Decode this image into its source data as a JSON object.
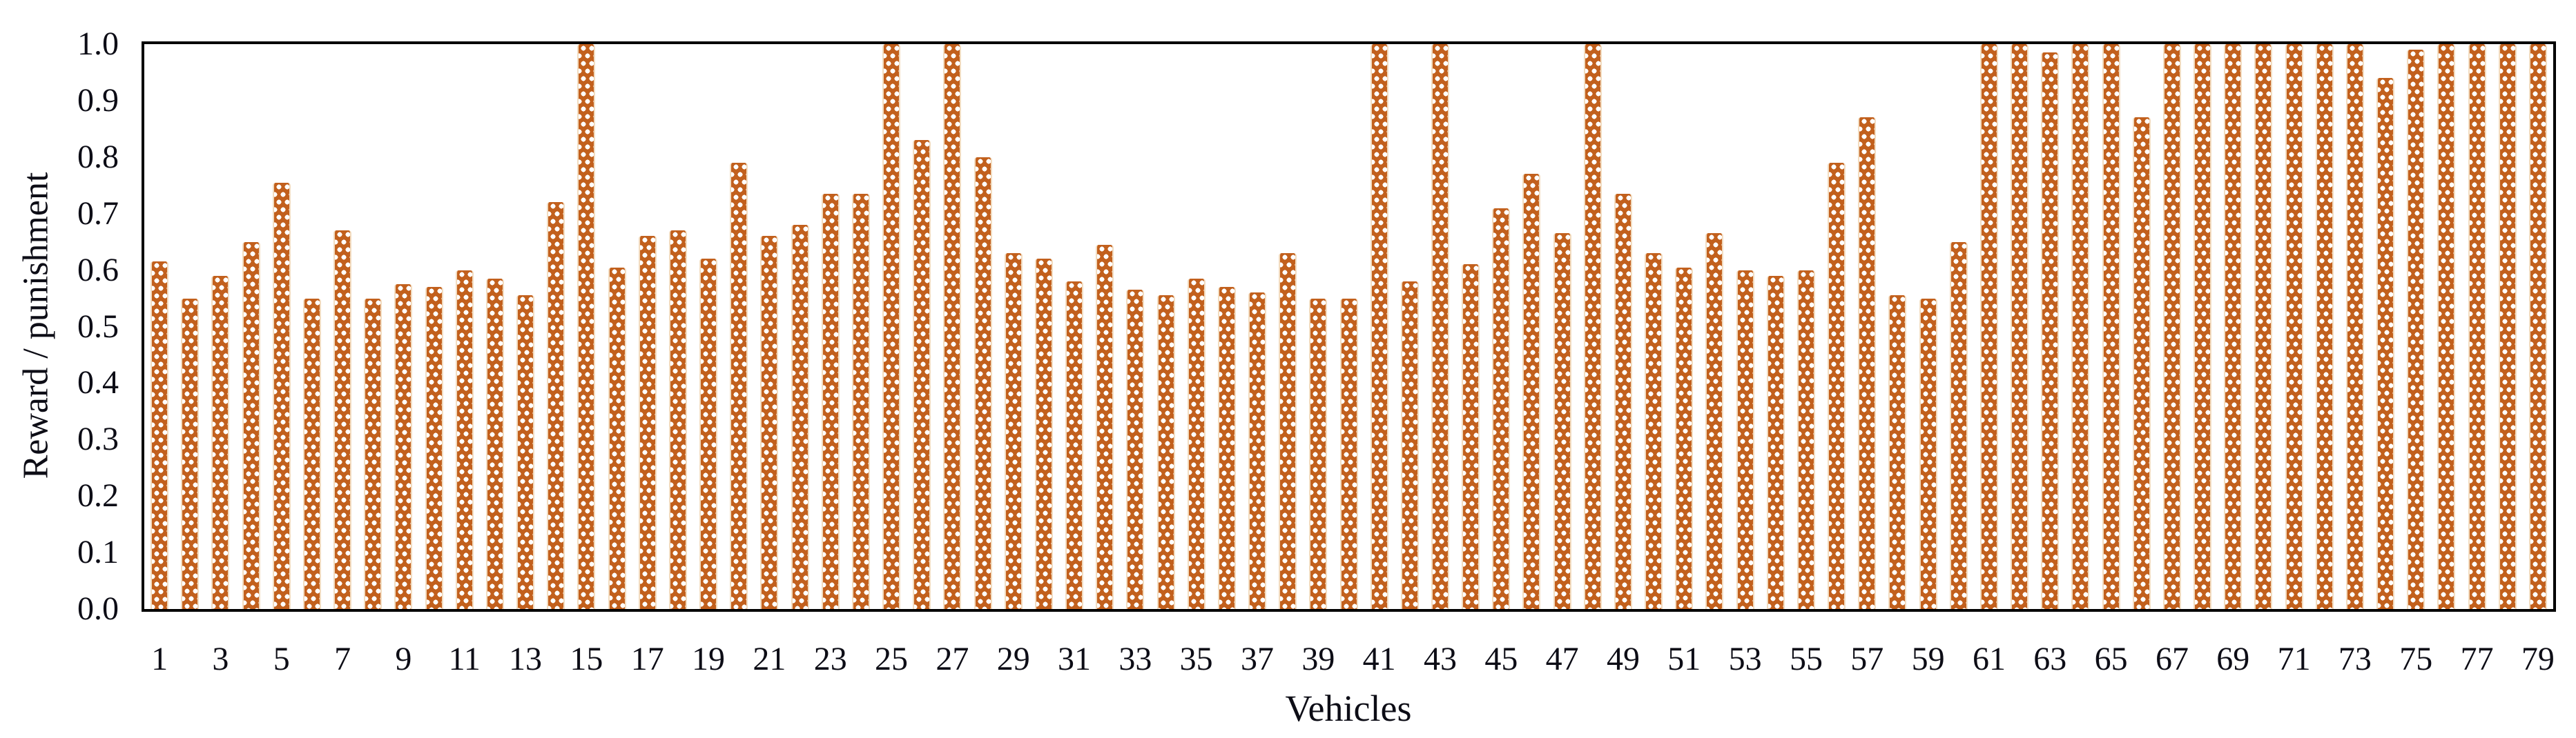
{
  "figure": {
    "ylabel": "Reward / punishment",
    "xlabel": "Vehicles"
  },
  "axes": {
    "y_ticks": [
      "1.0",
      "0.9",
      "0.8",
      "0.7",
      "0.6",
      "0.5",
      "0.4",
      "0.3",
      "0.2",
      "0.1",
      "0.0"
    ],
    "x_tick_labels": [
      1,
      3,
      5,
      7,
      9,
      11,
      13,
      15,
      17,
      19,
      21,
      23,
      25,
      27,
      29,
      31,
      33,
      35,
      37,
      39,
      41,
      43,
      45,
      47,
      49,
      51,
      53,
      55,
      57,
      59,
      61,
      63,
      65,
      67,
      69,
      71,
      73,
      75,
      77,
      79
    ]
  },
  "colors": {
    "bar_fill": "#c2601d",
    "bar_edge_stripe": "#f2dcc0",
    "bar_pattern_dot": "#ffffff",
    "axis_line": "#000000",
    "text": "#0d0d16",
    "background": "#ffffff"
  },
  "chart_data": {
    "type": "bar",
    "title": "",
    "xlabel": "Vehicles",
    "ylabel": "Reward / punishment",
    "ylim": [
      0,
      1.0
    ],
    "ytick_step": 0.1,
    "grid": false,
    "legend": false,
    "x_axis_labeling": "odd numbers only, 1 through 79",
    "x": [
      1,
      2,
      3,
      4,
      5,
      6,
      7,
      8,
      9,
      10,
      11,
      12,
      13,
      14,
      15,
      16,
      17,
      18,
      19,
      20,
      21,
      22,
      23,
      24,
      25,
      26,
      27,
      28,
      29,
      30,
      31,
      32,
      33,
      34,
      35,
      36,
      37,
      38,
      39,
      40,
      41,
      42,
      43,
      44,
      45,
      46,
      47,
      48,
      49,
      50,
      51,
      52,
      53,
      54,
      55,
      56,
      57,
      58,
      59,
      60,
      61,
      62,
      63,
      64,
      65,
      66,
      67,
      68,
      69,
      70,
      71,
      72,
      73,
      74,
      75,
      76,
      77,
      78,
      79
    ],
    "values": [
      0.615,
      0.55,
      0.59,
      0.65,
      0.755,
      0.55,
      0.67,
      0.55,
      0.575,
      0.57,
      0.6,
      0.585,
      0.555,
      0.72,
      1.0,
      0.605,
      0.66,
      0.67,
      0.62,
      0.79,
      0.66,
      0.68,
      0.735,
      0.735,
      1.0,
      0.83,
      1.0,
      0.8,
      0.63,
      0.62,
      0.58,
      0.645,
      0.565,
      0.555,
      0.585,
      0.57,
      0.56,
      0.63,
      0.55,
      0.55,
      1.0,
      0.58,
      1.0,
      0.61,
      0.71,
      0.77,
      0.665,
      1.0,
      0.735,
      0.63,
      0.605,
      0.665,
      0.6,
      0.59,
      0.6,
      0.79,
      0.87,
      0.555,
      0.55,
      0.65,
      1.0,
      1.0,
      0.985,
      1.0,
      1.0,
      0.87,
      1.0,
      1.0,
      1.0,
      1.0,
      1.0,
      1.0,
      1.0,
      0.94,
      0.99,
      1.0,
      1.0,
      1.0,
      1.0
    ]
  }
}
